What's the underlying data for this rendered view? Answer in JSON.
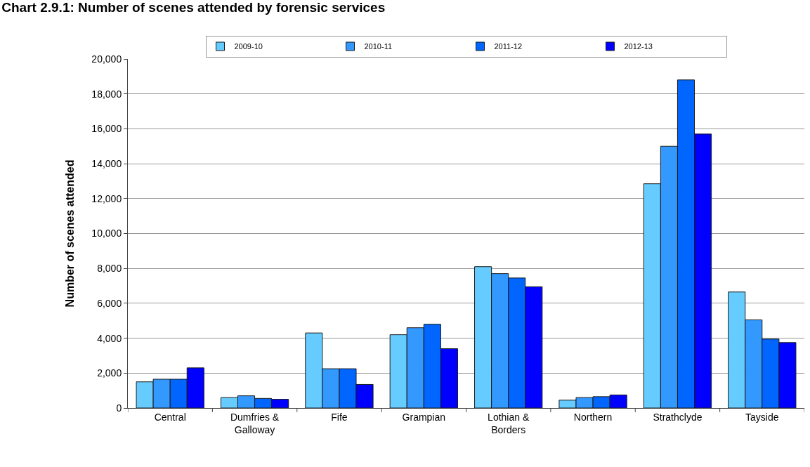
{
  "chart_data": {
    "type": "bar",
    "title": "Chart 2.9.1: Number of scenes attended by forensic services",
    "ylabel": "Number of scenes attended",
    "categories": [
      "Central",
      "Dumfries & Galloway",
      "Fife",
      "Grampian",
      "Lothian & Borders",
      "Northern",
      "Strathclyde",
      "Tayside"
    ],
    "series": [
      {
        "name": "2009-10",
        "color": "#66ccff",
        "values": [
          1500,
          600,
          4300,
          4200,
          8100,
          450,
          12850,
          6650
        ]
      },
      {
        "name": "2010-11",
        "color": "#3399ff",
        "values": [
          1650,
          700,
          2250,
          4600,
          7700,
          600,
          15000,
          5050
        ]
      },
      {
        "name": "2011-12",
        "color": "#0066ff",
        "values": [
          1650,
          550,
          2250,
          4800,
          7450,
          650,
          18800,
          3950
        ]
      },
      {
        "name": "2012-13",
        "color": "#0000ff",
        "values": [
          2300,
          500,
          1350,
          3400,
          6950,
          750,
          15700,
          3750
        ]
      }
    ],
    "ylim": [
      0,
      20000
    ],
    "yticks": [
      {
        "value": 0,
        "label": "0"
      },
      {
        "value": 2000,
        "label": "2,000"
      },
      {
        "value": 4000,
        "label": "4,000"
      },
      {
        "value": 6000,
        "label": "6,000"
      },
      {
        "value": 8000,
        "label": "8,000"
      },
      {
        "value": 10000,
        "label": "10,000"
      },
      {
        "value": 12000,
        "label": "12,000"
      },
      {
        "value": 14000,
        "label": "14,000"
      },
      {
        "value": 16000,
        "label": "16,000"
      },
      {
        "value": 18000,
        "label": "18,000"
      },
      {
        "value": 20000,
        "label": "20,000"
      }
    ],
    "grid": "y",
    "legend": "top"
  }
}
